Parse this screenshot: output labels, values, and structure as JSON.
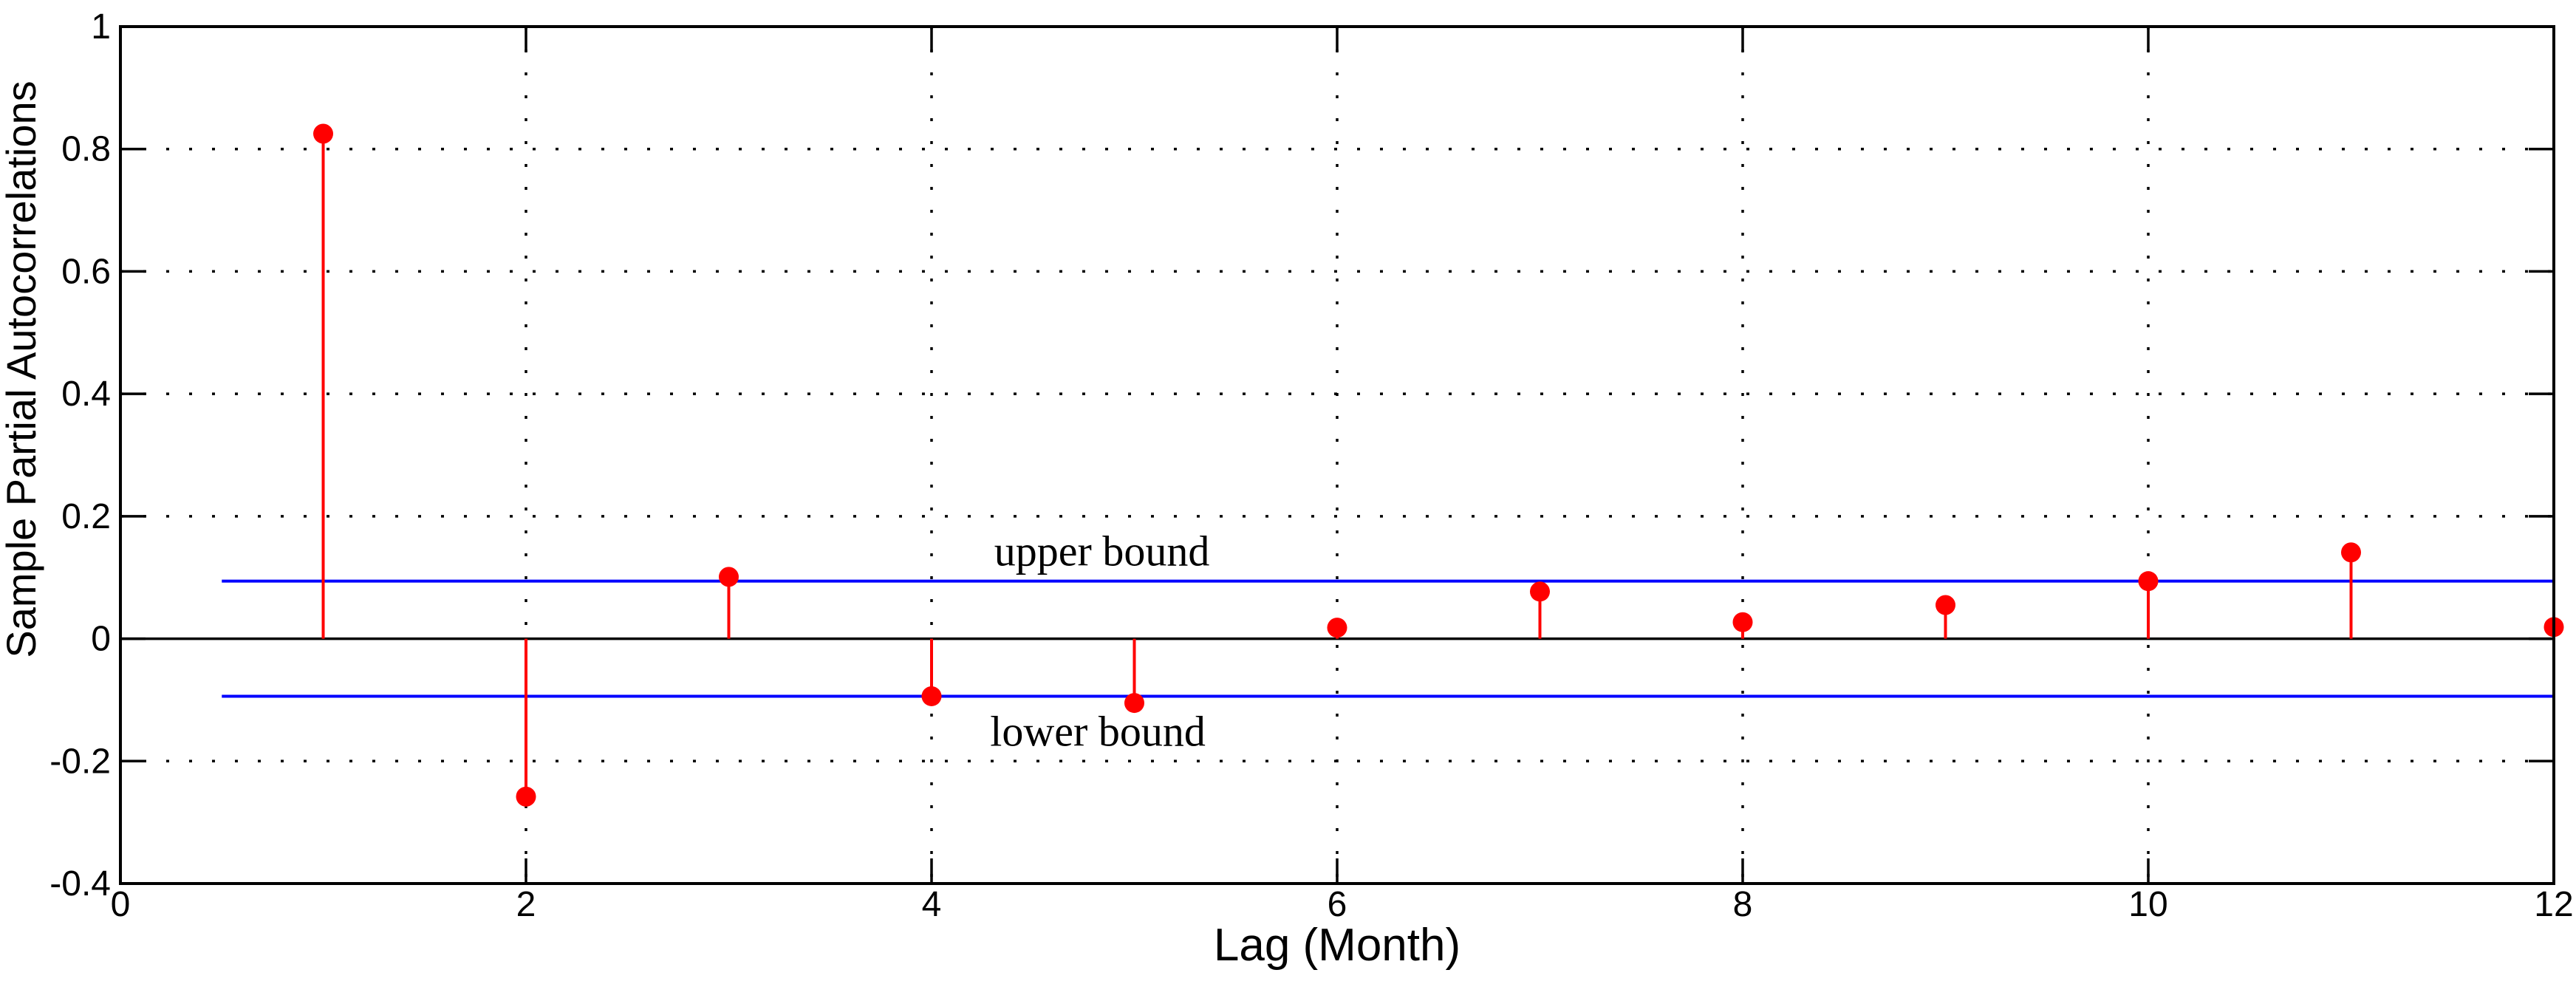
{
  "figure": {
    "background": "#ffffff",
    "axes_color": "#000000",
    "grid_color": "#000000"
  },
  "chart_data": {
    "type": "stem",
    "title": "",
    "xlabel": "Lag (Month)",
    "ylabel": "Sample Partial Autocorrelations",
    "xlim": [
      0,
      12
    ],
    "ylim": [
      -0.4,
      1
    ],
    "xticks": [
      0,
      2,
      4,
      6,
      8,
      10,
      12
    ],
    "yticks": [
      -0.4,
      -0.2,
      0,
      0.2,
      0.4,
      0.6,
      0.8,
      1
    ],
    "grid": true,
    "grid_style": "dotted",
    "legend_position": "none",
    "x": [
      1,
      2,
      3,
      4,
      5,
      6,
      7,
      8,
      9,
      10,
      11,
      12
    ],
    "values": [
      0.825,
      -0.258,
      0.101,
      -0.094,
      -0.105,
      0.018,
      0.077,
      0.027,
      0.055,
      0.094,
      0.141,
      0.019
    ],
    "stem_color": "#ff0000",
    "marker": "circle-filled",
    "zero_line": {
      "y": 0,
      "color": "#000000"
    },
    "bounds": {
      "upper_value": 0.094,
      "lower_value": -0.094,
      "x_start": 0.5,
      "x_end": 12,
      "color": "#0000ff"
    },
    "annotations": [
      {
        "id": "upper-bound-label",
        "text": "upper bound",
        "x": 4.84,
        "y": 0.144
      },
      {
        "id": "lower-bound-label",
        "text": "lower bound",
        "x": 4.82,
        "y": -0.151
      }
    ]
  }
}
